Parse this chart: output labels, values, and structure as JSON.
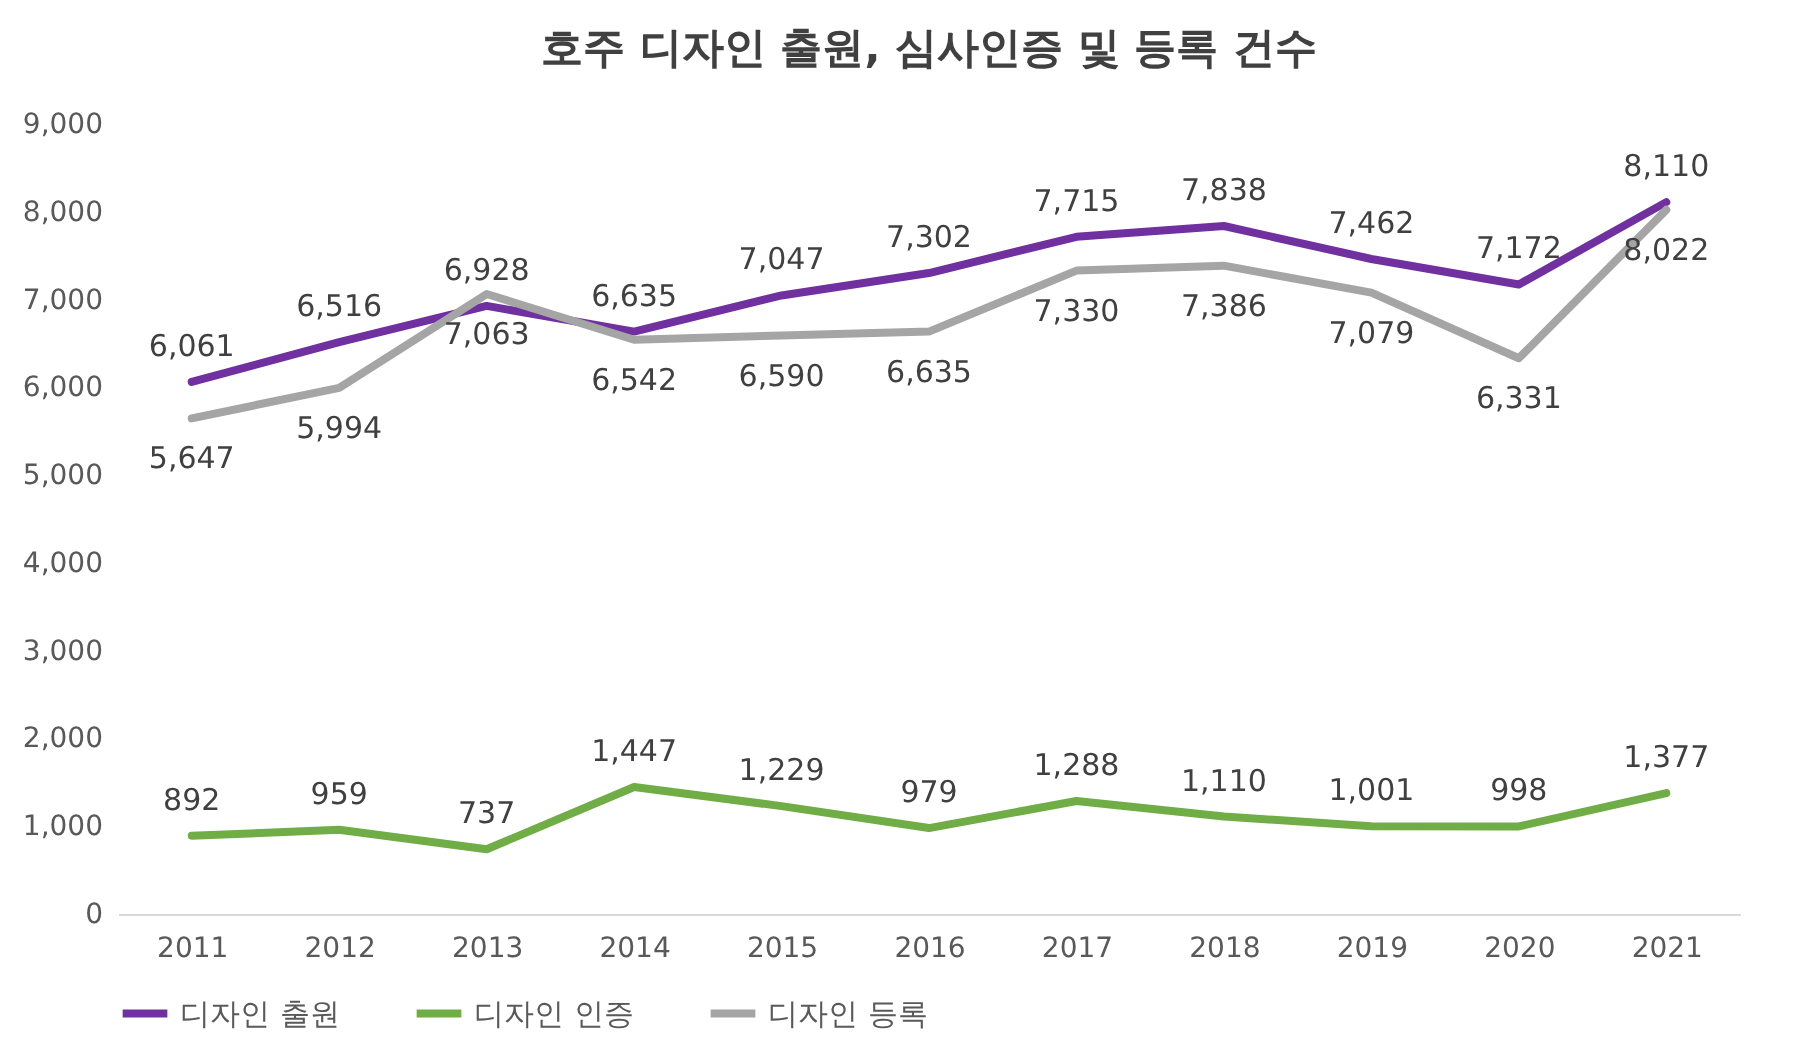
{
  "chart_data": {
    "type": "line",
    "title": "호주 디자인 출원, 심사인증 및 등록 건수",
    "categories": [
      "2011",
      "2012",
      "2013",
      "2014",
      "2015",
      "2016",
      "2017",
      "2018",
      "2019",
      "2020",
      "2021"
    ],
    "series": [
      {
        "name": "디자인 출원",
        "color": "#7030a0",
        "values": [
          6061,
          6516,
          6928,
          6635,
          7047,
          7302,
          7715,
          7838,
          7462,
          7172,
          8110
        ],
        "value_labels": [
          "6,061",
          "6,516",
          "6,928",
          "6,635",
          "7,047",
          "7,302",
          "7,715",
          "7,838",
          "7,462",
          "7,172",
          "8,110"
        ]
      },
      {
        "name": "디자인 인증",
        "color": "#70ad47",
        "values": [
          892,
          959,
          737,
          1447,
          1229,
          979,
          1288,
          1110,
          1001,
          998,
          1377
        ],
        "value_labels": [
          "892",
          "959",
          "737",
          "1,447",
          "1,229",
          "979",
          "1,288",
          "1,110",
          "1,001",
          "998",
          "1,377"
        ]
      },
      {
        "name": "디자인 등록",
        "color": "#a5a5a5",
        "values": [
          5647,
          5994,
          7063,
          6542,
          6590,
          6635,
          7330,
          7386,
          7079,
          6331,
          8022
        ],
        "value_labels": [
          "5,647",
          "5,994",
          "7,063",
          "6,542",
          "6,590",
          "6,635",
          "7,330",
          "7,386",
          "7,079",
          "6,331",
          "8,022"
        ]
      }
    ],
    "ylim": [
      0,
      9000
    ],
    "yticks": [
      0,
      {
        "value": 1000,
        "label": "1,000"
      },
      {
        "value": 2000,
        "label": "2,000"
      },
      {
        "value": 3000,
        "label": "3,000"
      },
      {
        "value": 4000,
        "label": "4,000"
      },
      {
        "value": 5000,
        "label": "5,000"
      },
      {
        "value": 6000,
        "label": "6,000"
      },
      {
        "value": 7000,
        "label": "7,000"
      },
      {
        "value": 8000,
        "label": "8,000"
      },
      {
        "value": 9000,
        "label": "9,000"
      }
    ],
    "legend": "bottom",
    "grid": false,
    "marker": "none",
    "line_style": "solid"
  }
}
